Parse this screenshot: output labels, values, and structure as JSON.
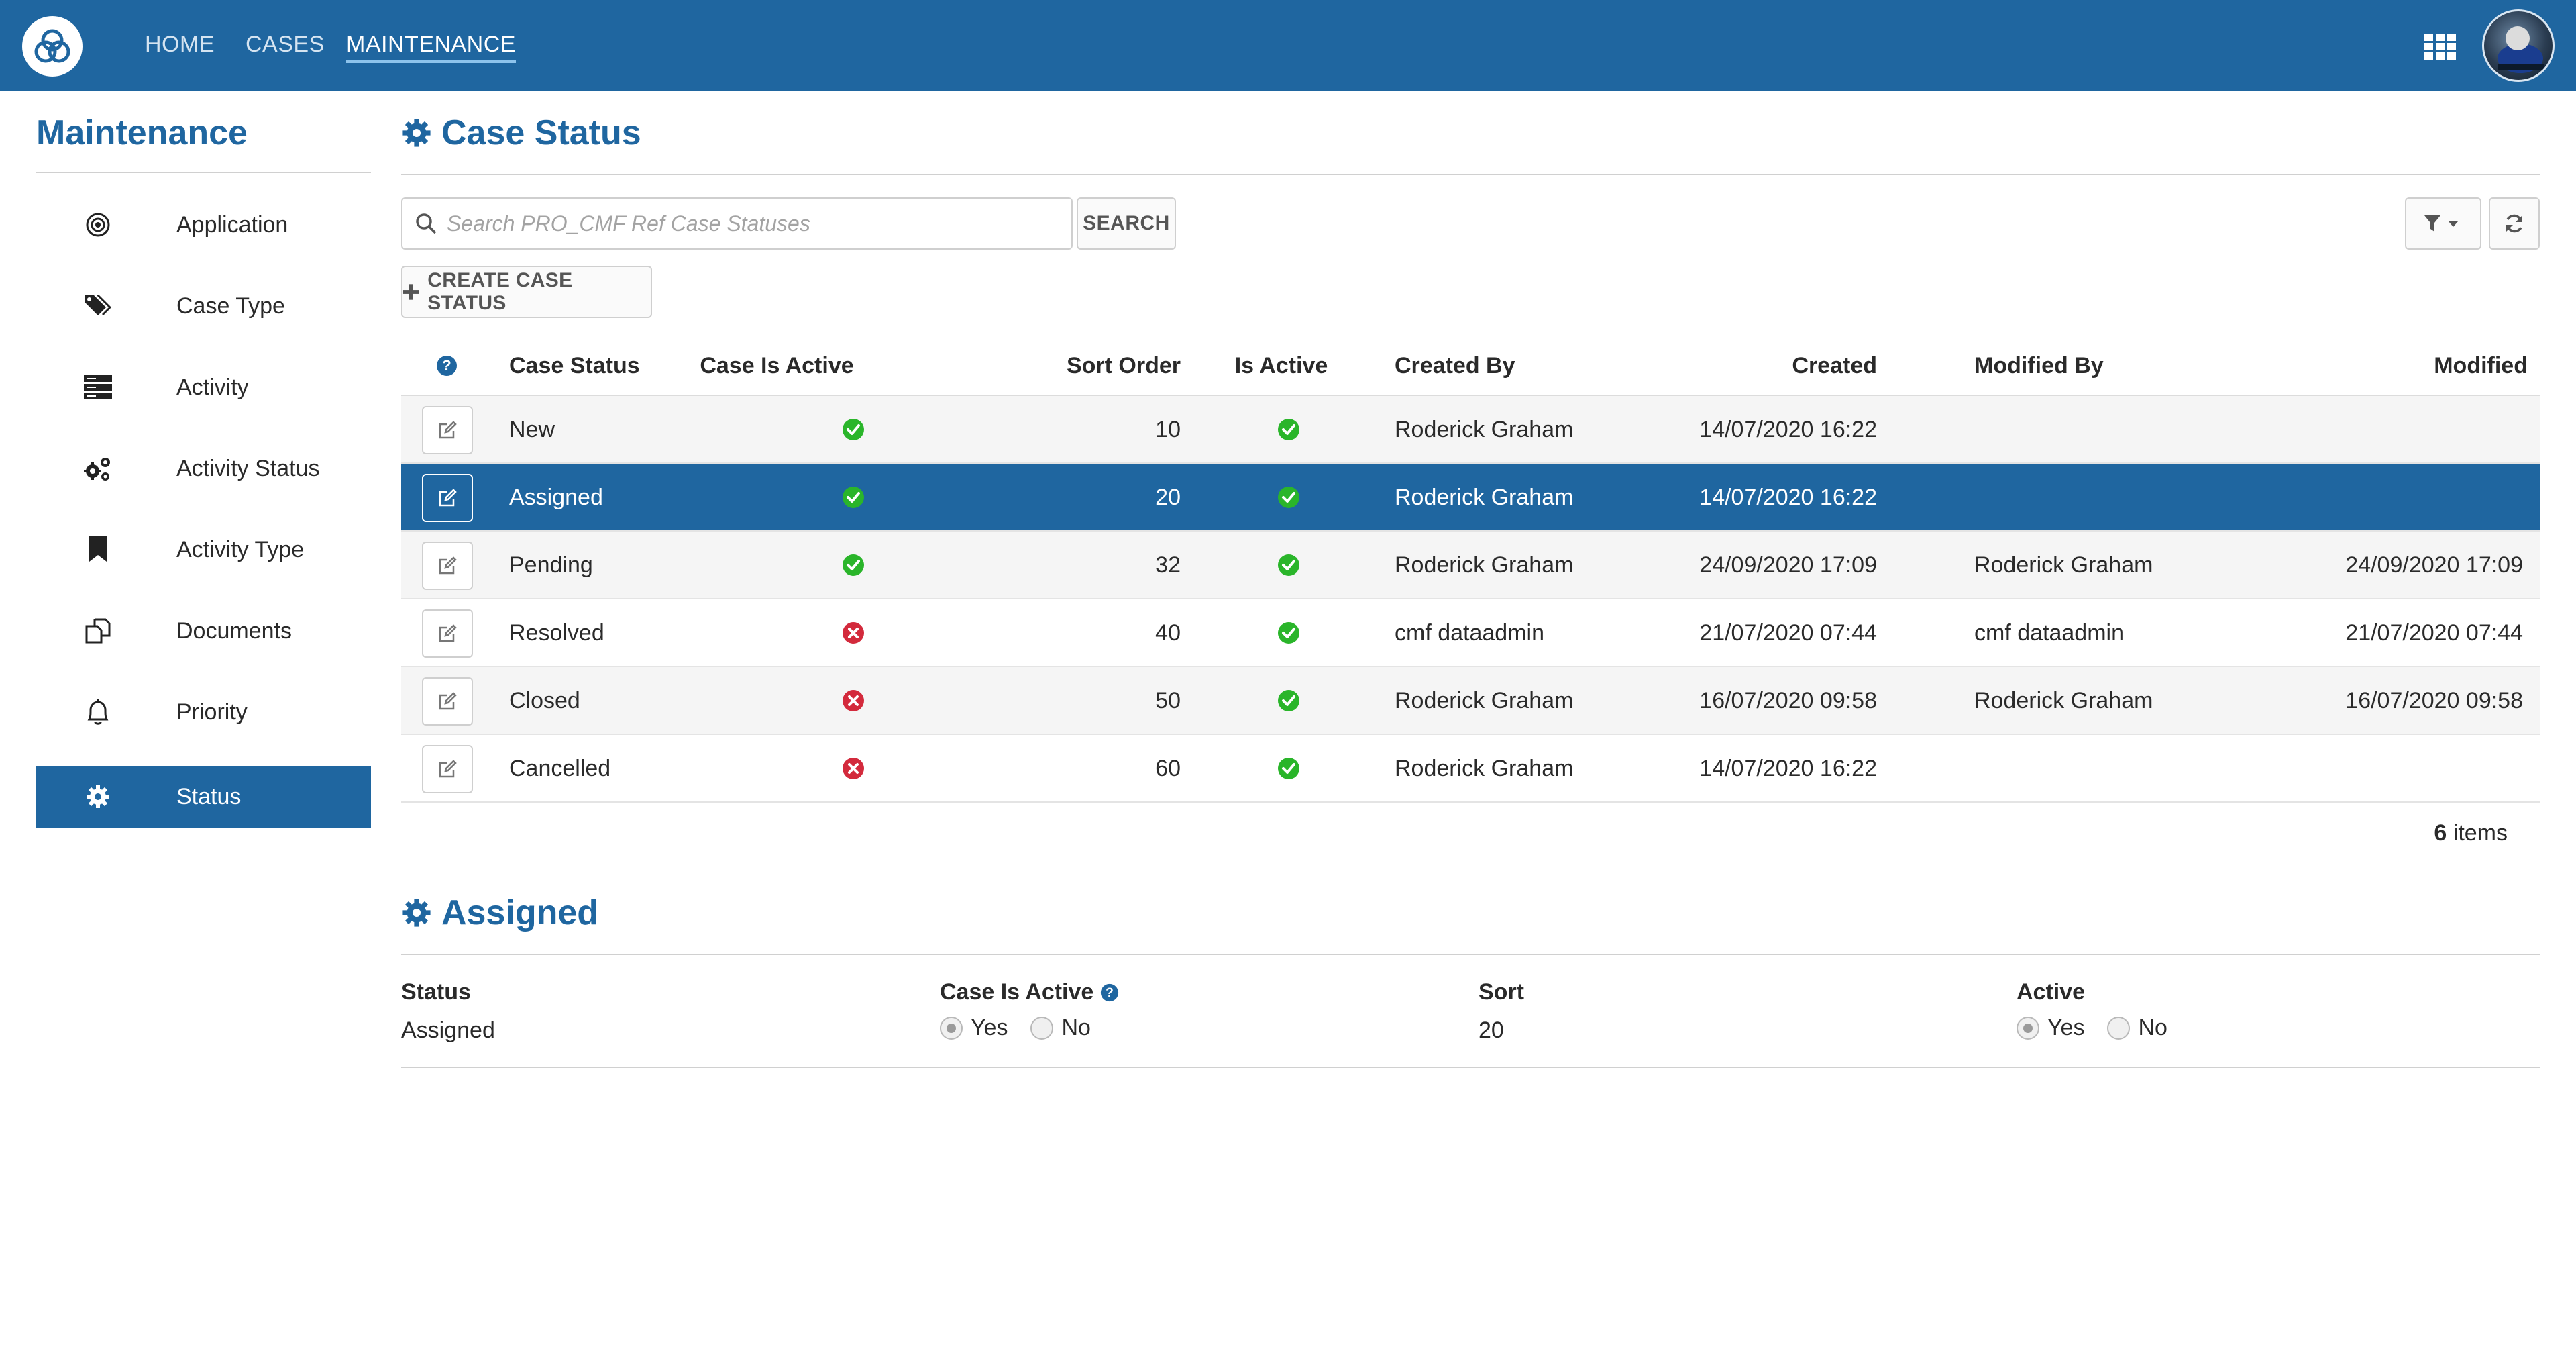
{
  "nav": {
    "items": [
      {
        "label": "HOME",
        "active": false
      },
      {
        "label": "CASES",
        "active": false
      },
      {
        "label": "MAINTENANCE",
        "active": true
      }
    ]
  },
  "sidebar": {
    "title": "Maintenance",
    "items": [
      {
        "label": "Application",
        "icon": "target-icon",
        "active": false
      },
      {
        "label": "Case Type",
        "icon": "tags-icon",
        "active": false
      },
      {
        "label": "Activity",
        "icon": "server-icon",
        "active": false
      },
      {
        "label": "Activity Status",
        "icon": "gears-icon",
        "active": false
      },
      {
        "label": "Activity Type",
        "icon": "bookmark-icon",
        "active": false
      },
      {
        "label": "Documents",
        "icon": "documents-icon",
        "active": false
      },
      {
        "label": "Priority",
        "icon": "bell-icon",
        "active": false
      },
      {
        "label": "Status",
        "icon": "gear-icon",
        "active": true
      }
    ]
  },
  "main": {
    "title": "Case Status",
    "search": {
      "placeholder": "Search PRO_CMF Ref Case Statuses",
      "value": "",
      "button_label": "SEARCH"
    },
    "create_label": "CREATE CASE STATUS",
    "table": {
      "columns": {
        "case_status": "Case Status",
        "case_is_active": "Case Is Active",
        "sort_order": "Sort Order",
        "is_active": "Is Active",
        "created_by": "Created By",
        "created": "Created",
        "modified_by": "Modified By",
        "modified": "Modified"
      },
      "rows": [
        {
          "case_status": "New",
          "case_is_active": true,
          "sort_order": "10",
          "is_active": true,
          "created_by": "Roderick Graham",
          "created": "14/07/2020 16:22",
          "modified_by": "",
          "modified": "",
          "selected": false
        },
        {
          "case_status": "Assigned",
          "case_is_active": true,
          "sort_order": "20",
          "is_active": true,
          "created_by": "Roderick Graham",
          "created": "14/07/2020 16:22",
          "modified_by": "",
          "modified": "",
          "selected": true
        },
        {
          "case_status": "Pending",
          "case_is_active": true,
          "sort_order": "32",
          "is_active": true,
          "created_by": "Roderick Graham",
          "created": "24/09/2020 17:09",
          "modified_by": "Roderick Graham",
          "modified": "24/09/2020 17:09",
          "selected": false
        },
        {
          "case_status": "Resolved",
          "case_is_active": false,
          "sort_order": "40",
          "is_active": true,
          "created_by": "cmf dataadmin",
          "created": "21/07/2020 07:44",
          "modified_by": "cmf dataadmin",
          "modified": "21/07/2020 07:44",
          "selected": false
        },
        {
          "case_status": "Closed",
          "case_is_active": false,
          "sort_order": "50",
          "is_active": true,
          "created_by": "Roderick Graham",
          "created": "16/07/2020 09:58",
          "modified_by": "Roderick Graham",
          "modified": "16/07/2020 09:58",
          "selected": false
        },
        {
          "case_status": "Cancelled",
          "case_is_active": false,
          "sort_order": "60",
          "is_active": true,
          "created_by": "Roderick Graham",
          "created": "14/07/2020 16:22",
          "modified_by": "",
          "modified": "",
          "selected": false
        }
      ],
      "count": "6",
      "count_suffix": "items"
    }
  },
  "details": {
    "title": "Assigned",
    "status_label": "Status",
    "status_value": "Assigned",
    "case_is_active_label": "Case Is Active",
    "case_is_active_options": {
      "yes": "Yes",
      "no": "No"
    },
    "sort_label": "Sort",
    "sort_value": "20",
    "active_label": "Active",
    "active_options": {
      "yes": "Yes",
      "no": "No"
    }
  },
  "colors": {
    "brand": "#1f66a0",
    "ok": "#2ab52a",
    "error": "#d32a3c"
  }
}
